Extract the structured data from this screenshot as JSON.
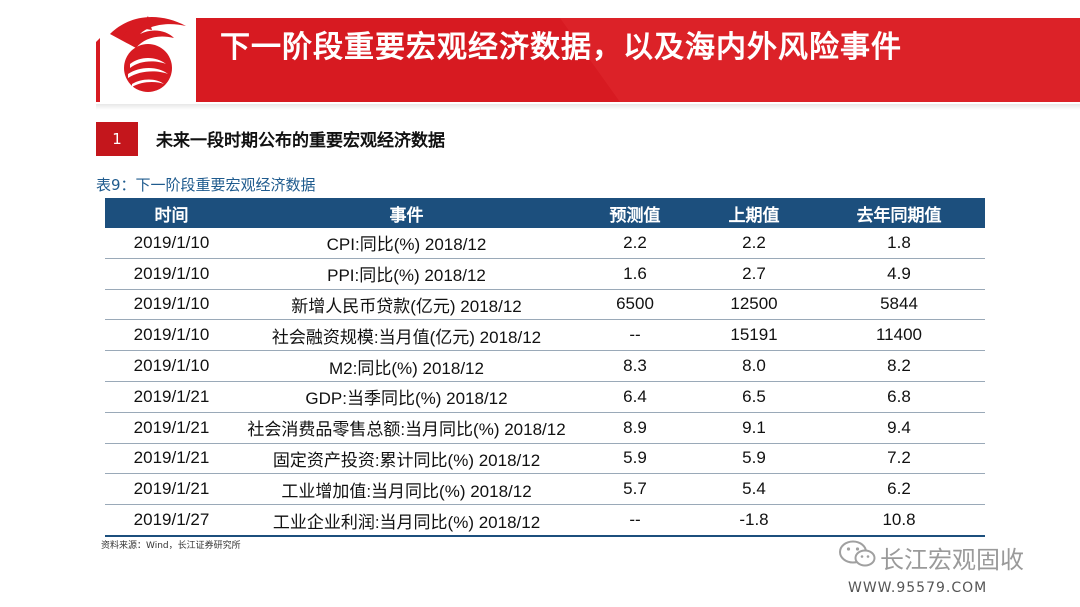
{
  "header": {
    "title": "下一阶段重要宏观经济数据，以及海内外风险事件",
    "brand_color": "#d71a21"
  },
  "section": {
    "number": "1",
    "title": "未来一段时期公布的重要宏观经济数据"
  },
  "table": {
    "caption": "表9：下一阶段重要宏观经济数据",
    "header_color": "#1c4f7d",
    "columns": [
      "时间",
      "事件",
      "预测值",
      "上期值",
      "去年同期值"
    ],
    "rows": [
      {
        "date": "2019/1/10",
        "event": "CPI:同比(%) 2018/12",
        "forecast": "2.2",
        "previous": "2.2",
        "last_year": "1.8"
      },
      {
        "date": "2019/1/10",
        "event": "PPI:同比(%) 2018/12",
        "forecast": "1.6",
        "previous": "2.7",
        "last_year": "4.9"
      },
      {
        "date": "2019/1/10",
        "event": "新增人民币贷款(亿元) 2018/12",
        "forecast": "6500",
        "previous": "12500",
        "last_year": "5844"
      },
      {
        "date": "2019/1/10",
        "event": "社会融资规模:当月值(亿元) 2018/12",
        "forecast": "--",
        "previous": "15191",
        "last_year": "11400"
      },
      {
        "date": "2019/1/10",
        "event": "M2:同比(%) 2018/12",
        "forecast": "8.3",
        "previous": "8.0",
        "last_year": "8.2"
      },
      {
        "date": "2019/1/21",
        "event": "GDP:当季同比(%) 2018/12",
        "forecast": "6.4",
        "previous": "6.5",
        "last_year": "6.8"
      },
      {
        "date": "2019/1/21",
        "event": "社会消费品零售总额:当月同比(%) 2018/12",
        "forecast": "8.9",
        "previous": "9.1",
        "last_year": "9.4"
      },
      {
        "date": "2019/1/21",
        "event": "固定资产投资:累计同比(%) 2018/12",
        "forecast": "5.9",
        "previous": "5.9",
        "last_year": "7.2"
      },
      {
        "date": "2019/1/21",
        "event": "工业增加值:当月同比(%) 2018/12",
        "forecast": "5.7",
        "previous": "5.4",
        "last_year": "6.2"
      },
      {
        "date": "2019/1/27",
        "event": "工业企业利润:当月同比(%) 2018/12",
        "forecast": "--",
        "previous": "-1.8",
        "last_year": "10.8"
      }
    ]
  },
  "footer": {
    "source": "资料来源：Wind，长江证券研究所",
    "watermark_icon": "wechat-icon",
    "watermark_name": "长江宏观固收",
    "watermark_url": "WWW.95579.COM"
  }
}
